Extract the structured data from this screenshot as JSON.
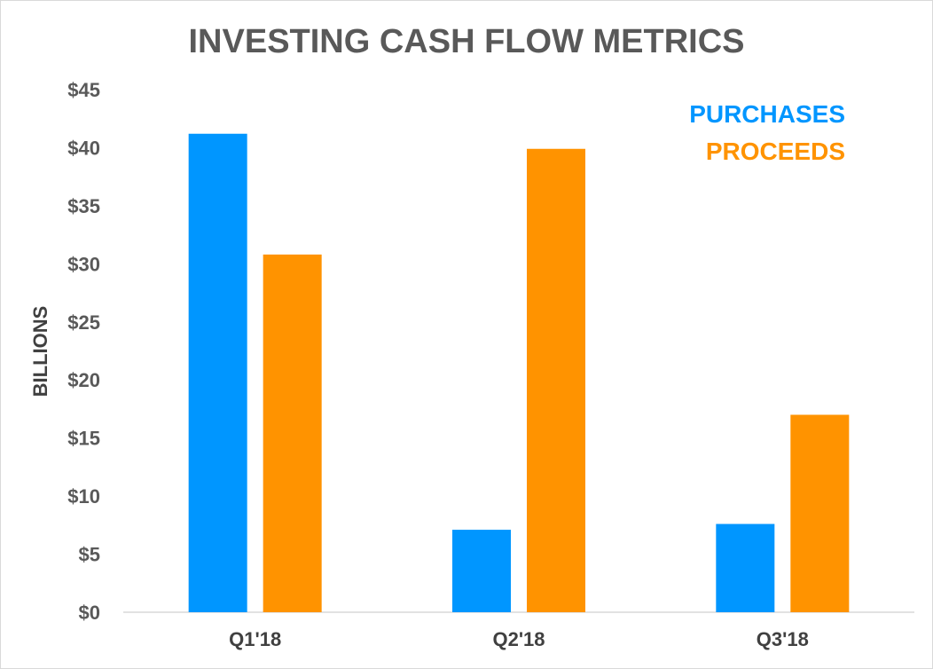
{
  "chart_data": {
    "type": "bar",
    "title": "INVESTING CASH FLOW METRICS",
    "xlabel": "",
    "ylabel": "BILLIONS",
    "categories": [
      "Q1'18",
      "Q2'18",
      "Q3'18"
    ],
    "series": [
      {
        "name": "PURCHASES",
        "color": "#0096FF",
        "values": [
          41.2,
          7.1,
          7.6
        ]
      },
      {
        "name": "PROCEEDS",
        "color": "#FF9300",
        "values": [
          30.8,
          39.9,
          17.0
        ]
      }
    ],
    "ylim": [
      0,
      45
    ],
    "yticks": [
      0,
      5,
      10,
      15,
      20,
      25,
      30,
      35,
      40,
      45
    ],
    "ytick_labels": [
      "$0",
      "$5",
      "$10",
      "$15",
      "$20",
      "$25",
      "$30",
      "$35",
      "$40",
      "$45"
    ],
    "grid": false,
    "legend": "top-right"
  }
}
